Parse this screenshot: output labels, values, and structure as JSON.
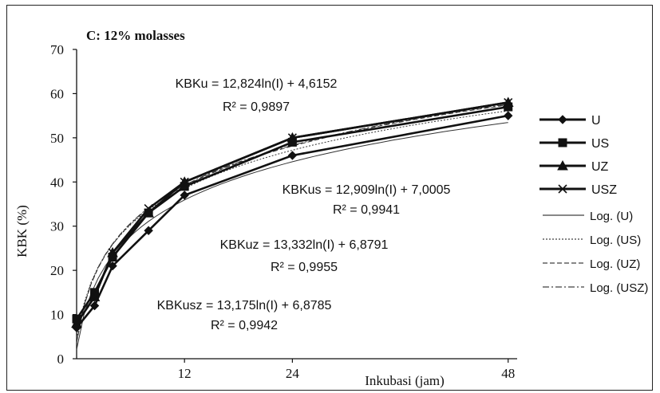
{
  "chart_data": {
    "type": "line",
    "title": "C: 12% molasses",
    "xlabel": "Inkubasi (jam)",
    "ylabel": "KBK (%)",
    "xlim": [
      0,
      49
    ],
    "ylim": [
      0,
      70
    ],
    "x_ticks": [
      12,
      24,
      48
    ],
    "y_ticks": [
      0,
      10,
      20,
      30,
      40,
      50,
      60,
      70
    ],
    "grid": false,
    "legend_position": "right",
    "series": [
      {
        "name": "U",
        "marker": "diamond",
        "x": [
          0,
          2,
          4,
          8,
          12,
          24,
          48
        ],
        "y": [
          7,
          12,
          21,
          29,
          37,
          46,
          55
        ]
      },
      {
        "name": "US",
        "marker": "square",
        "x": [
          0,
          2,
          4,
          8,
          12,
          24,
          48
        ],
        "y": [
          9,
          15,
          23,
          33,
          39,
          49,
          57
        ]
      },
      {
        "name": "UZ",
        "marker": "triangle",
        "x": [
          0,
          2,
          4,
          8,
          12,
          24,
          48
        ],
        "y": [
          8,
          14,
          24,
          33,
          40,
          50,
          58
        ]
      },
      {
        "name": "USZ",
        "marker": "x",
        "x": [
          0,
          2,
          4,
          8,
          12,
          24,
          48
        ],
        "y": [
          8,
          14,
          24,
          34,
          40,
          50,
          58
        ]
      }
    ],
    "trendlines": [
      {
        "name": "Log. (U)",
        "style": "solid"
      },
      {
        "name": "Log. (US)",
        "style": "dotted"
      },
      {
        "name": "Log. (UZ)",
        "style": "dashed"
      },
      {
        "name": "Log. (USZ)",
        "style": "dashdot"
      }
    ],
    "annotations": [
      {
        "equation": "KBKu = 12,824ln(I) + 4,6152",
        "r2": "R² = 0,9897"
      },
      {
        "equation": "KBKus = 12,909ln(I) + 7,0005",
        "r2": "R² = 0,9941"
      },
      {
        "equation": "KBKuz = 13,332ln(I) + 6,8791",
        "r2": "R² = 0,9955"
      },
      {
        "equation": "KBKusz = 13,175ln(I) + 6,8785",
        "r2": "R² = 0,9942"
      }
    ]
  }
}
